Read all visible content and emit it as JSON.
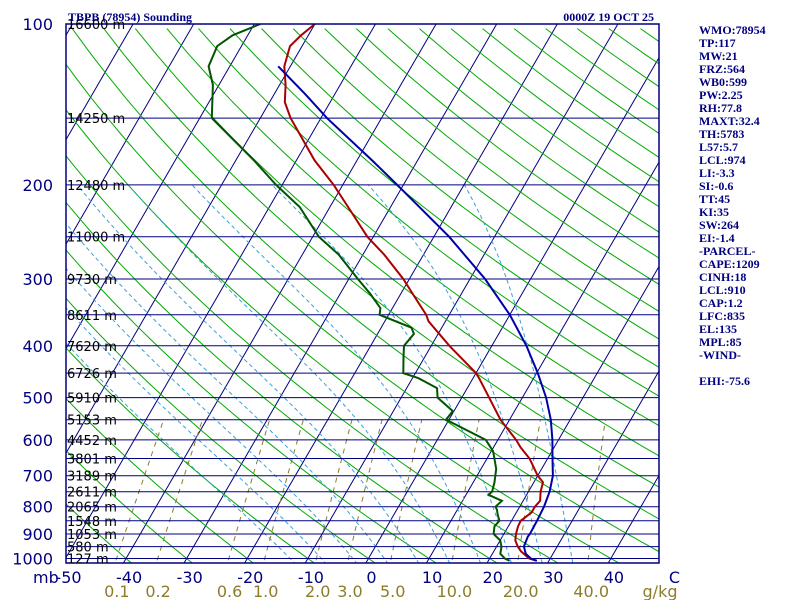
{
  "chart_data": {
    "type": "skew-t",
    "title": "TBPB (78954) Sounding",
    "time": "0000Z 19 OCT 25",
    "pressure_axis_unit": "mb",
    "pressure_labels": [
      "100",
      "200",
      "300",
      "400",
      "500",
      "600",
      "700",
      "800",
      "900",
      "1000"
    ],
    "height_labels": [
      {
        "p": 100,
        "label": "16600 m"
      },
      {
        "p": 150,
        "label": "14250 m"
      },
      {
        "p": 200,
        "label": "12480 m"
      },
      {
        "p": 250,
        "label": "11000 m"
      },
      {
        "p": 300,
        "label": "9730 m"
      },
      {
        "p": 350,
        "label": "8611 m"
      },
      {
        "p": 400,
        "label": "7620 m"
      },
      {
        "p": 450,
        "label": "6726 m"
      },
      {
        "p": 500,
        "label": "5910 m"
      },
      {
        "p": 550,
        "label": "5153 m"
      },
      {
        "p": 600,
        "label": "4452 m"
      },
      {
        "p": 650,
        "label": "3801 m"
      },
      {
        "p": 700,
        "label": "3189 m"
      },
      {
        "p": 750,
        "label": "2611 m"
      },
      {
        "p": 800,
        "label": "2065 m"
      },
      {
        "p": 850,
        "label": "1548 m"
      },
      {
        "p": 900,
        "label": "1053 m"
      },
      {
        "p": 950,
        "label": "580 m"
      },
      {
        "p": 1000,
        "label": "127 m"
      }
    ],
    "temperature_labels": [
      "-50",
      "-40",
      "-30",
      "-20",
      "-10",
      "0",
      "10",
      "20",
      "30",
      "40",
      "C"
    ],
    "mixing_ratio_labels": [
      "0.1",
      "0.2",
      "0.6",
      "1.0",
      "2.0",
      "3.0",
      "5.0",
      "10.0",
      "20.0",
      "40.0",
      "g/kg"
    ],
    "series": [
      {
        "name": "temperature",
        "color": "#aa0000",
        "points": [
          [
            1010,
            28
          ],
          [
            1000,
            26.5
          ],
          [
            970,
            24.5
          ],
          [
            950,
            23.5
          ],
          [
            925,
            22.5
          ],
          [
            900,
            22
          ],
          [
            870,
            21.6
          ],
          [
            850,
            21.5
          ],
          [
            820,
            22.5
          ],
          [
            800,
            22.5
          ],
          [
            780,
            22.8
          ],
          [
            750,
            22
          ],
          [
            720,
            21.5
          ],
          [
            700,
            20
          ],
          [
            650,
            17
          ],
          [
            620,
            14.5
          ],
          [
            600,
            13
          ],
          [
            550,
            8.5
          ],
          [
            500,
            4.5
          ],
          [
            460,
            1
          ],
          [
            450,
            0
          ],
          [
            400,
            -7
          ],
          [
            360,
            -12.8
          ],
          [
            350,
            -13.8
          ],
          [
            320,
            -18
          ],
          [
            300,
            -21
          ],
          [
            270,
            -26.5
          ],
          [
            250,
            -31
          ],
          [
            220,
            -37
          ],
          [
            200,
            -41.5
          ],
          [
            180,
            -47
          ],
          [
            150,
            -55
          ],
          [
            140,
            -57.5
          ],
          [
            130,
            -59
          ],
          [
            120,
            -61
          ],
          [
            110,
            -62
          ],
          [
            105,
            -61.2
          ],
          [
            100,
            -60
          ]
        ]
      },
      {
        "name": "dewpoint",
        "color": "#005500",
        "points": [
          [
            1010,
            23.5
          ],
          [
            1000,
            22.5
          ],
          [
            980,
            21.3
          ],
          [
            950,
            20.8
          ],
          [
            925,
            20
          ],
          [
            900,
            18.3
          ],
          [
            870,
            17.7
          ],
          [
            850,
            18
          ],
          [
            830,
            17.2
          ],
          [
            810,
            16.5
          ],
          [
            800,
            16
          ],
          [
            780,
            16.5
          ],
          [
            760,
            13.7
          ],
          [
            750,
            14
          ],
          [
            720,
            13.5
          ],
          [
            700,
            13
          ],
          [
            680,
            12.5
          ],
          [
            650,
            11.2
          ],
          [
            630,
            10.3
          ],
          [
            600,
            8
          ],
          [
            550,
            -0.5
          ],
          [
            530,
            -0.2
          ],
          [
            500,
            -4
          ],
          [
            480,
            -5
          ],
          [
            460,
            -9
          ],
          [
            450,
            -12
          ],
          [
            420,
            -13.5
          ],
          [
            400,
            -14.5
          ],
          [
            380,
            -14
          ],
          [
            370,
            -15
          ],
          [
            350,
            -21.5
          ],
          [
            340,
            -22
          ],
          [
            320,
            -25
          ],
          [
            300,
            -28.5
          ],
          [
            270,
            -34
          ],
          [
            250,
            -39
          ],
          [
            220,
            -45
          ],
          [
            200,
            -51
          ],
          [
            180,
            -57
          ],
          [
            150,
            -68
          ],
          [
            130,
            -71
          ],
          [
            120,
            -73.5
          ],
          [
            110,
            -74
          ],
          [
            105,
            -72.5
          ],
          [
            100,
            -69
          ]
        ]
      },
      {
        "name": "parcel",
        "color": "#0000aa",
        "points": [
          [
            1010,
            28
          ],
          [
            1000,
            26.8
          ],
          [
            980,
            25.5
          ],
          [
            950,
            24.5
          ],
          [
            910,
            24.2
          ],
          [
            900,
            24.3
          ],
          [
            850,
            24.2
          ],
          [
            800,
            24
          ],
          [
            750,
            23.5
          ],
          [
            700,
            22.5
          ],
          [
            650,
            20.8
          ],
          [
            600,
            19
          ],
          [
            550,
            16.8
          ],
          [
            500,
            13.9
          ],
          [
            450,
            10.2
          ],
          [
            400,
            5.7
          ],
          [
            350,
            0
          ],
          [
            300,
            -7.5
          ],
          [
            250,
            -17.5
          ],
          [
            200,
            -31
          ],
          [
            180,
            -37.5
          ],
          [
            150,
            -49
          ],
          [
            135,
            -55
          ],
          [
            120,
            -62
          ]
        ]
      }
    ],
    "indices": [
      "WMO:78954",
      "TP:117",
      "MW:21",
      "FRZ:564",
      "WB0:599",
      "PW:2.25",
      "RH:77.8",
      "MAXT:32.4",
      "TH:5783",
      "L57:5.7",
      "LCL:974",
      "LI:-3.3",
      "SI:-0.6",
      "TT:45",
      "KI:35",
      "SW:264",
      "EI:-1.4",
      "-PARCEL-",
      "CAPE:1209",
      "CINH:18",
      "LCL:910",
      "CAP:1.2",
      "LFC:835",
      "EL:135",
      "MPL:85",
      "-WIND-",
      "",
      "EHI:-75.6"
    ],
    "colors": {
      "frame": "#000080",
      "isobar": "#000080",
      "isotherm": "#000080",
      "dry_adiabat": "#00aa00",
      "moist_adiabat": "#3aa0d8",
      "mixing_ratio": "#8b7d2a",
      "temperature": "#aa0000",
      "dewpoint": "#005500",
      "parcel": "#0000aa",
      "mixing_label": "#8b7d2a"
    }
  }
}
